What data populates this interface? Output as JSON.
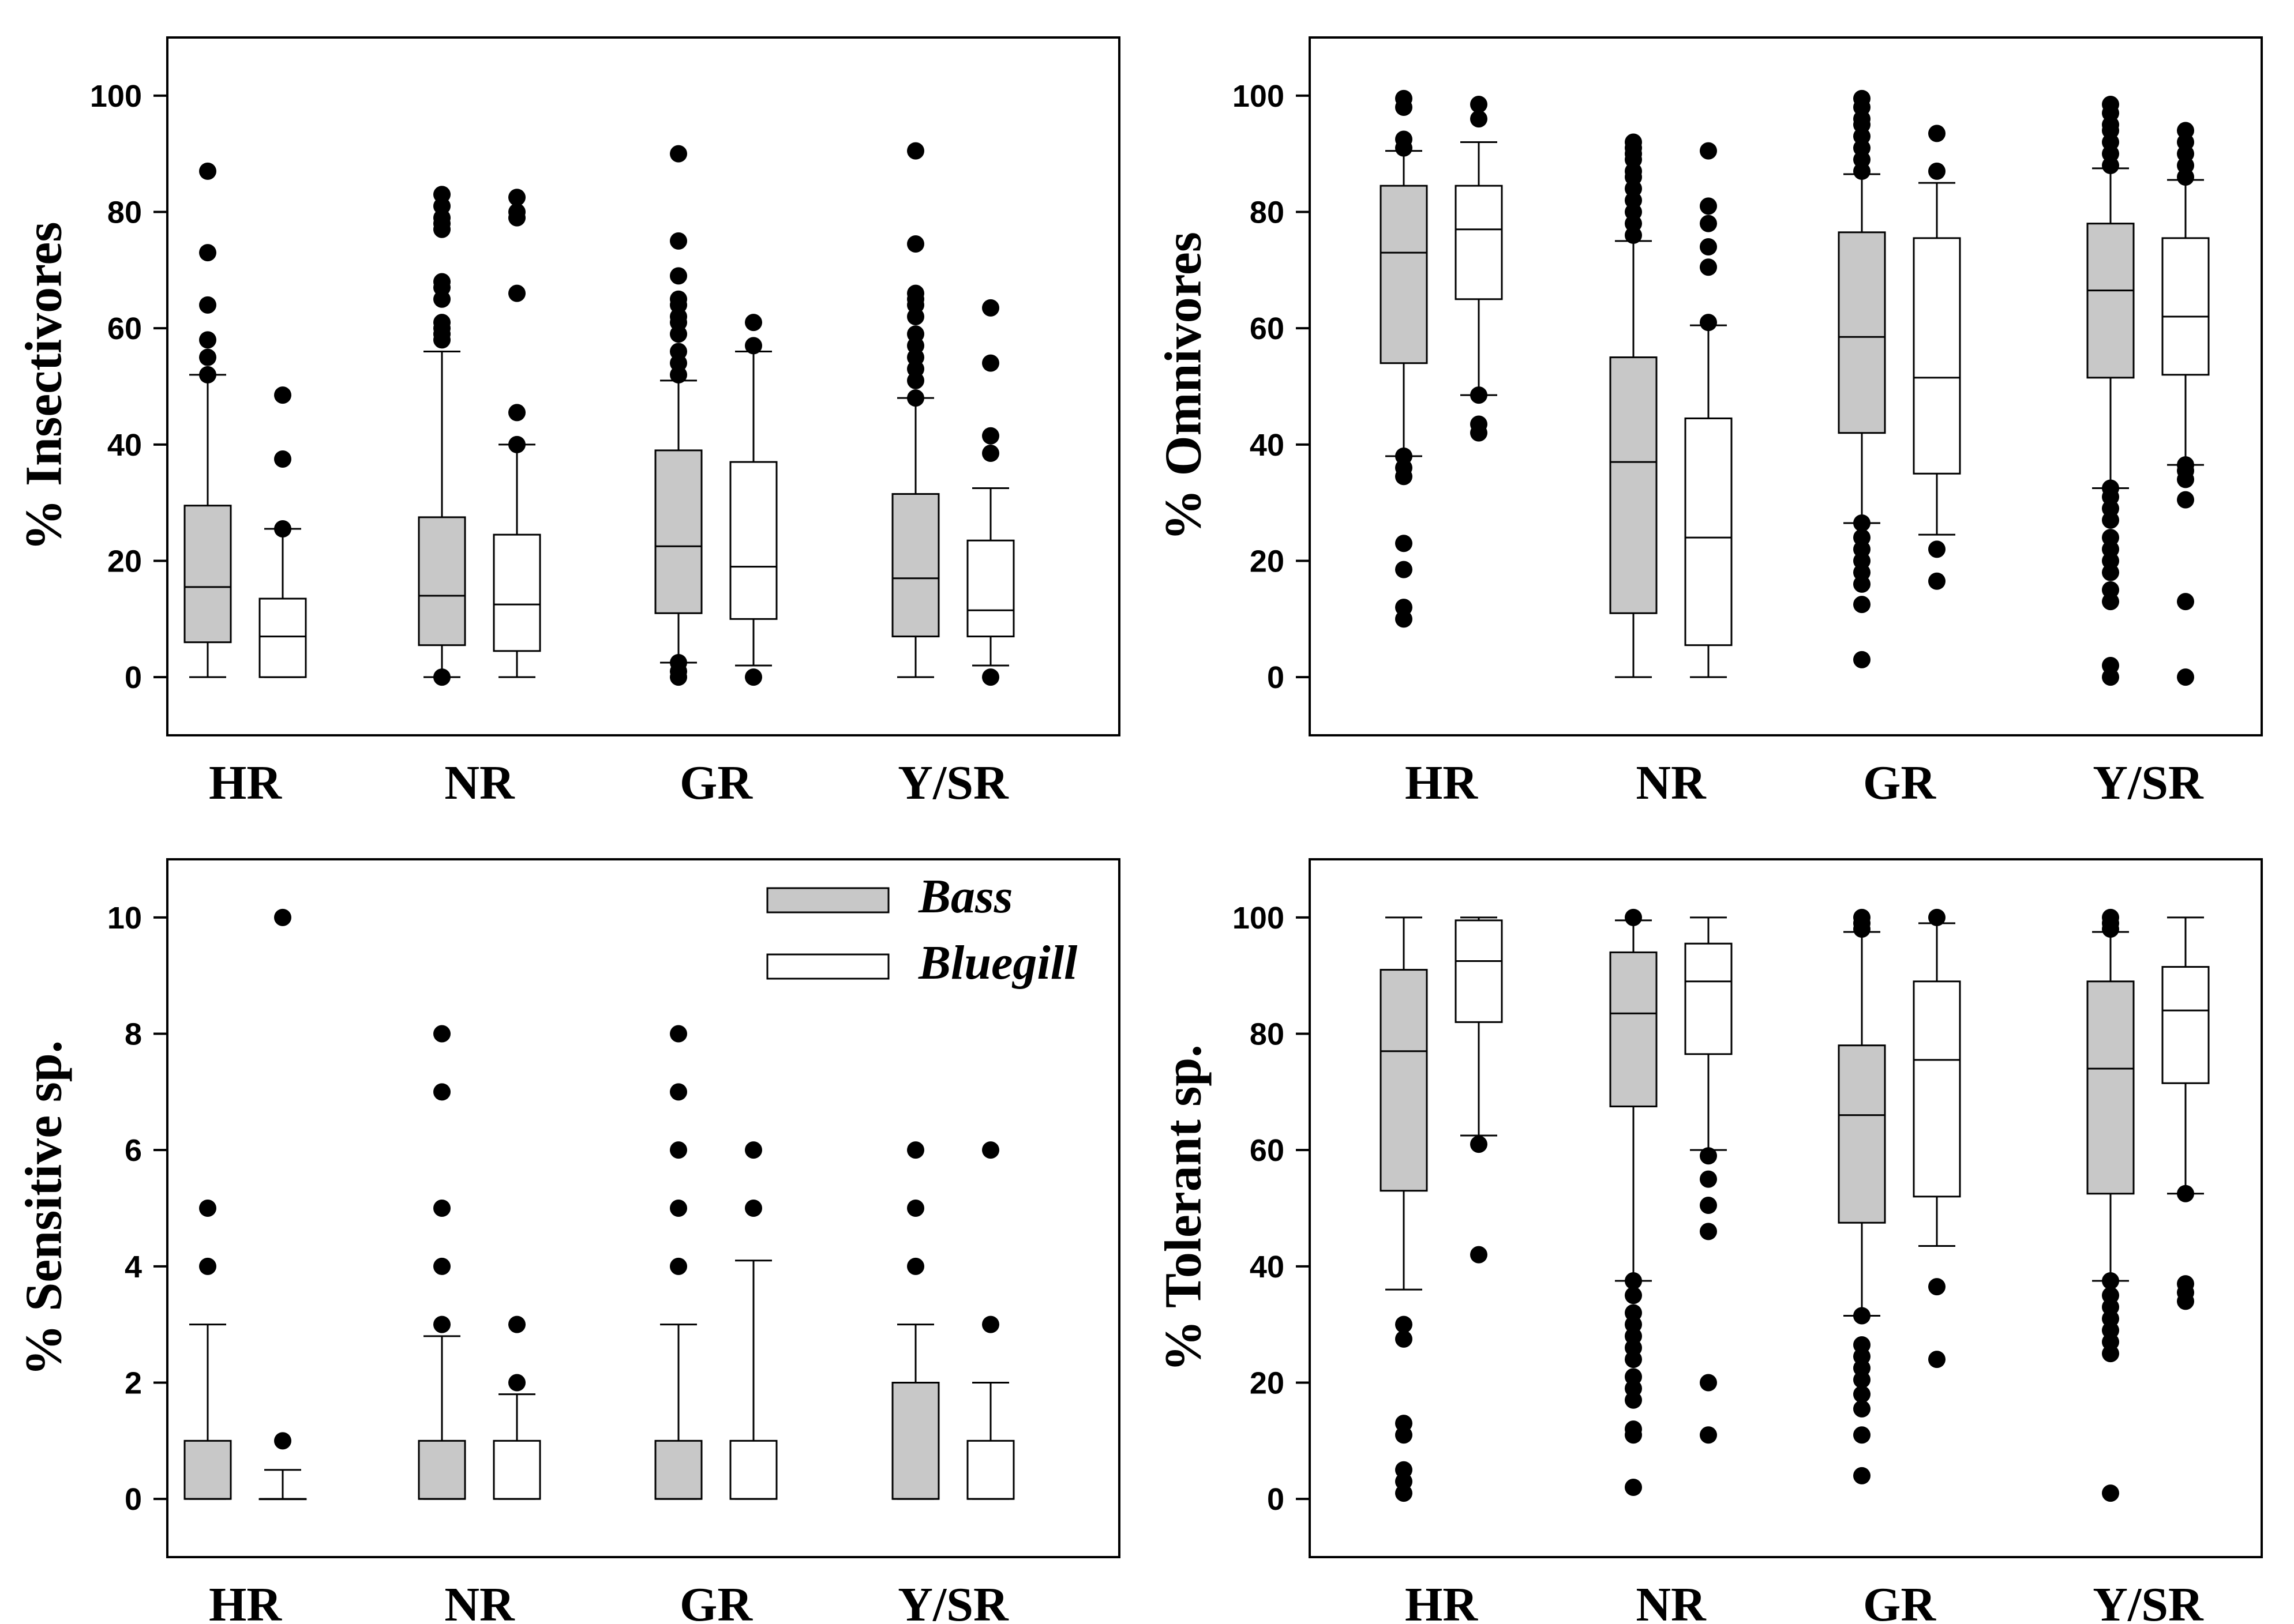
{
  "chart_data": [
    {
      "type": "boxplot",
      "ylabel": "% Insectivores",
      "ylim": [
        -10,
        110
      ],
      "yticks": [
        0,
        20,
        40,
        60,
        80,
        100
      ],
      "categories": [
        "HR",
        "NR",
        "GR",
        "Y/SR"
      ],
      "series": [
        {
          "name": "Bass",
          "color": "#c8c8c8",
          "boxes": [
            {
              "q1": 6,
              "median": 15.5,
              "q3": 29.5,
              "wlo": 0,
              "whi": 52,
              "outliers": [
                52,
                55,
                58,
                64,
                73,
                87
              ]
            },
            {
              "q1": 5.5,
              "median": 14,
              "q3": 27.5,
              "wlo": 0,
              "whi": 56,
              "outliers": [
                0,
                58,
                59,
                60,
                61,
                65,
                67,
                68,
                77,
                78,
                79,
                81,
                83
              ]
            },
            {
              "q1": 11,
              "median": 22.5,
              "q3": 39,
              "wlo": 2.5,
              "whi": 51,
              "outliers": [
                0,
                1,
                2.5,
                52,
                54,
                56,
                59,
                61,
                62,
                64,
                65,
                69,
                75,
                90
              ]
            },
            {
              "q1": 7,
              "median": 17,
              "q3": 31.5,
              "wlo": 0,
              "whi": 48,
              "outliers": [
                48,
                51,
                53,
                55,
                57,
                59,
                62,
                64,
                65,
                66,
                74.5,
                90.5
              ]
            }
          ]
        },
        {
          "name": "Bluegill",
          "color": "#ffffff",
          "boxes": [
            {
              "q1": 0,
              "median": 7,
              "q3": 13.5,
              "wlo": 0,
              "whi": 25.5,
              "outliers": [
                25.5,
                37.5,
                48.5
              ]
            },
            {
              "q1": 4.5,
              "median": 12.5,
              "q3": 24.5,
              "wlo": 0,
              "whi": 40,
              "outliers": [
                40,
                45.5,
                66,
                79,
                80,
                82.5
              ]
            },
            {
              "q1": 10,
              "median": 19,
              "q3": 37,
              "wlo": 2,
              "whi": 56,
              "outliers": [
                0,
                57,
                61
              ]
            },
            {
              "q1": 7,
              "median": 11.5,
              "q3": 23.5,
              "wlo": 2,
              "whi": 32.5,
              "outliers": [
                0,
                38.5,
                41.5,
                54,
                63.5
              ]
            }
          ]
        }
      ]
    },
    {
      "type": "boxplot",
      "ylabel": "% Omnivores",
      "ylim": [
        -10,
        110
      ],
      "yticks": [
        0,
        20,
        40,
        60,
        80,
        100
      ],
      "categories": [
        "HR",
        "NR",
        "GR",
        "Y/SR"
      ],
      "series": [
        {
          "name": "Bass",
          "color": "#c8c8c8",
          "boxes": [
            {
              "q1": 54,
              "median": 73,
              "q3": 84.5,
              "wlo": 38,
              "whi": 90.5,
              "outliers": [
                10,
                12,
                18.5,
                23,
                34.5,
                36,
                38,
                91,
                92.5,
                98,
                99.5
              ]
            },
            {
              "q1": 11,
              "median": 37,
              "q3": 55,
              "wlo": 0,
              "whi": 75,
              "outliers": [
                76,
                78,
                80,
                82,
                84,
                86,
                87,
                89,
                90,
                91,
                92
              ]
            },
            {
              "q1": 42,
              "median": 58.5,
              "q3": 76.5,
              "wlo": 26.5,
              "whi": 86.5,
              "outliers": [
                3,
                12.5,
                16,
                18,
                20,
                22,
                24,
                26.5,
                87,
                89,
                91,
                93,
                95,
                96,
                98,
                99.5
              ]
            },
            {
              "q1": 51.5,
              "median": 66.5,
              "q3": 78,
              "wlo": 32.5,
              "whi": 87.5,
              "outliers": [
                0,
                2,
                13,
                15,
                18,
                20,
                22,
                24,
                27,
                29,
                31,
                32.5,
                88,
                90,
                92,
                94,
                95,
                97,
                98.5
              ]
            }
          ]
        },
        {
          "name": "Bluegill",
          "color": "#ffffff",
          "boxes": [
            {
              "q1": 65,
              "median": 77,
              "q3": 84.5,
              "wlo": 48.5,
              "whi": 92,
              "outliers": [
                42,
                43.5,
                48.5,
                96,
                98.5
              ]
            },
            {
              "q1": 5.5,
              "median": 24,
              "q3": 44.5,
              "wlo": 0,
              "whi": 60.5,
              "outliers": [
                61,
                70.5,
                74,
                78,
                81,
                90.5
              ]
            },
            {
              "q1": 35,
              "median": 51.5,
              "q3": 75.5,
              "wlo": 24.5,
              "whi": 85,
              "outliers": [
                16.5,
                22,
                87,
                93.5
              ]
            },
            {
              "q1": 52,
              "median": 62,
              "q3": 75.5,
              "wlo": 36.5,
              "whi": 85.5,
              "outliers": [
                0,
                13,
                30.5,
                34,
                35.5,
                36.5,
                86,
                88,
                90,
                92,
                94
              ]
            }
          ]
        }
      ]
    },
    {
      "type": "boxplot",
      "ylabel": "% Sensitive sp.",
      "ylim": [
        -1,
        11
      ],
      "yticks": [
        0,
        2,
        4,
        6,
        8,
        10
      ],
      "categories": [
        "HR",
        "NR",
        "GR",
        "Y/SR"
      ],
      "legend": [
        {
          "label": "Bass",
          "color": "#c8c8c8"
        },
        {
          "label": "Bluegill",
          "color": "#ffffff"
        }
      ],
      "series": [
        {
          "name": "Bass",
          "color": "#c8c8c8",
          "boxes": [
            {
              "q1": 0,
              "median": 0,
              "q3": 1,
              "wlo": 0,
              "whi": 3,
              "outliers": [
                4,
                5
              ]
            },
            {
              "q1": 0,
              "median": 0,
              "q3": 1,
              "wlo": 0,
              "whi": 2.8,
              "outliers": [
                3,
                4,
                5,
                7,
                8
              ]
            },
            {
              "q1": 0,
              "median": 0,
              "q3": 1,
              "wlo": 0,
              "whi": 3,
              "outliers": [
                4,
                5,
                6,
                7,
                8
              ]
            },
            {
              "q1": 0,
              "median": 0,
              "q3": 2,
              "wlo": 0,
              "whi": 3,
              "outliers": [
                4,
                5,
                6
              ]
            }
          ]
        },
        {
          "name": "Bluegill",
          "color": "#ffffff",
          "boxes": [
            {
              "q1": 0,
              "median": 0,
              "q3": 0,
              "wlo": 0,
              "whi": 0.5,
              "outliers": [
                1,
                10
              ]
            },
            {
              "q1": 0,
              "median": 0,
              "q3": 1,
              "wlo": 0,
              "whi": 1.8,
              "outliers": [
                2,
                3
              ]
            },
            {
              "q1": 0,
              "median": 0,
              "q3": 1,
              "wlo": 0,
              "whi": 4.1,
              "outliers": [
                5,
                6
              ]
            },
            {
              "q1": 0,
              "median": 0,
              "q3": 1,
              "wlo": 0,
              "whi": 2,
              "outliers": [
                3,
                6
              ]
            }
          ]
        }
      ]
    },
    {
      "type": "boxplot",
      "ylabel": "% Tolerant sp.",
      "ylim": [
        -10,
        110
      ],
      "yticks": [
        0,
        20,
        40,
        60,
        80,
        100
      ],
      "categories": [
        "HR",
        "NR",
        "GR",
        "Y/SR"
      ],
      "series": [
        {
          "name": "Bass",
          "color": "#c8c8c8",
          "boxes": [
            {
              "q1": 53,
              "median": 77,
              "q3": 91,
              "wlo": 36,
              "whi": 100,
              "outliers": [
                1,
                3,
                5,
                11,
                13,
                27.5,
                30
              ]
            },
            {
              "q1": 67.5,
              "median": 83.5,
              "q3": 94,
              "wlo": 37.5,
              "whi": 99.5,
              "outliers": [
                2,
                11,
                12,
                17,
                19,
                21,
                24,
                26,
                28,
                30,
                32,
                35,
                37.5,
                100
              ]
            },
            {
              "q1": 47.5,
              "median": 66,
              "q3": 78,
              "wlo": 31.5,
              "whi": 97.5,
              "outliers": [
                4,
                11,
                15.5,
                18,
                20.5,
                22.5,
                24.5,
                26.5,
                31.5,
                98,
                99,
                100
              ]
            },
            {
              "q1": 52.5,
              "median": 74,
              "q3": 89,
              "wlo": 37.5,
              "whi": 97.5,
              "outliers": [
                1,
                25,
                27,
                29,
                31,
                33,
                35,
                37.5,
                98,
                99,
                100
              ]
            }
          ]
        },
        {
          "name": "Bluegill",
          "color": "#ffffff",
          "boxes": [
            {
              "q1": 82,
              "median": 92.5,
              "q3": 99.5,
              "wlo": 62.5,
              "whi": 100,
              "outliers": [
                42,
                61
              ]
            },
            {
              "q1": 76.5,
              "median": 89,
              "q3": 95.5,
              "wlo": 60,
              "whi": 100,
              "outliers": [
                11,
                20,
                46,
                50.5,
                55,
                59
              ]
            },
            {
              "q1": 52,
              "median": 75.5,
              "q3": 89,
              "wlo": 43.5,
              "whi": 99,
              "outliers": [
                24,
                36.5,
                100
              ]
            },
            {
              "q1": 71.5,
              "median": 84,
              "q3": 91.5,
              "wlo": 52.5,
              "whi": 100,
              "outliers": [
                34,
                35.5,
                37,
                52.5
              ]
            }
          ]
        }
      ]
    }
  ]
}
